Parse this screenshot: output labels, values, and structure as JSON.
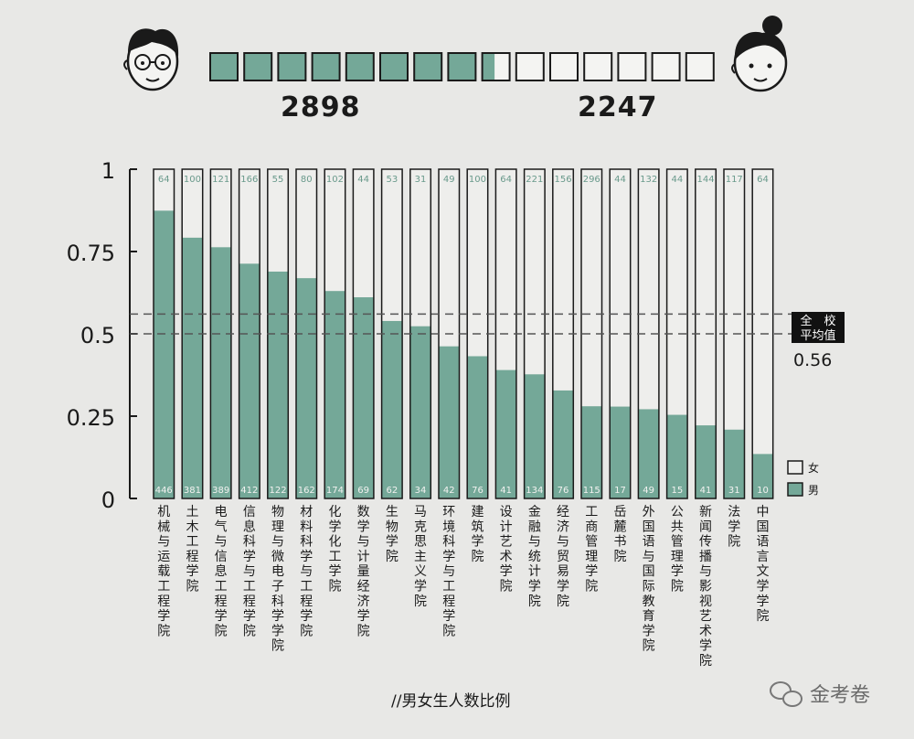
{
  "header": {
    "male_total": "2898",
    "female_total": "2247",
    "male_fraction": 0.5633,
    "total_squares": 15
  },
  "colors": {
    "male": "#74a898",
    "female": "#eeeeec",
    "outline": "#1a1a1a",
    "label_on_light": "#6a9a8c",
    "label_on_dark": "#f2f2f0"
  },
  "chart_data": {
    "type": "bar",
    "stacked": true,
    "title": "//男女生人数比例",
    "ylim": [
      0,
      1
    ],
    "yticks": [
      "0",
      "0.25",
      "0.5",
      "0.75",
      "1"
    ],
    "categories": [
      "机械与运载工程学院",
      "土木工程学院",
      "电气与信息工程学院",
      "信息科学与工程学院",
      "物理与微电子科学学院",
      "材料科学与工程学院",
      "化学化工学院",
      "数学与计量经济学院",
      "生物学院",
      "马克思主义学院",
      "环境科学与工程学院",
      "建筑学院",
      "设计艺术学院",
      "金融与统计学院",
      "经济与贸易学院",
      "工商管理学院",
      "岳麓书院",
      "外国语与国际教育学院",
      "公共管理学院",
      "新闻传播与影视艺术学院",
      "法学院",
      "中国语言文学学院"
    ],
    "series": [
      {
        "name": "男",
        "counts": [
          "446",
          "381",
          "389",
          "412",
          "122",
          "162",
          "174",
          "69",
          "62",
          "34",
          "42",
          "76",
          "41",
          "134",
          "76",
          "115",
          "17",
          "49",
          "15",
          "41",
          "31",
          "10"
        ],
        "ratio": [
          0.874,
          0.792,
          0.763,
          0.713,
          0.689,
          0.669,
          0.63,
          0.611,
          0.539,
          0.523,
          0.462,
          0.432,
          0.39,
          0.377,
          0.328,
          0.28,
          0.279,
          0.271,
          0.254,
          0.222,
          0.209,
          0.135
        ]
      },
      {
        "name": "女",
        "counts": [
          "64",
          "100",
          "121",
          "166",
          "55",
          "80",
          "102",
          "44",
          "53",
          "31",
          "49",
          "100",
          "64",
          "221",
          "156",
          "296",
          "44",
          "132",
          "44",
          "144",
          "117",
          "64"
        ]
      }
    ],
    "reference_lines": [
      0.5,
      0.56
    ],
    "annotation": {
      "line1": "全　校",
      "line2": "平均值",
      "value": "0.56"
    },
    "legend": {
      "position": "bottom-right",
      "female": "女",
      "male": "男"
    }
  },
  "watermark": "金考卷"
}
